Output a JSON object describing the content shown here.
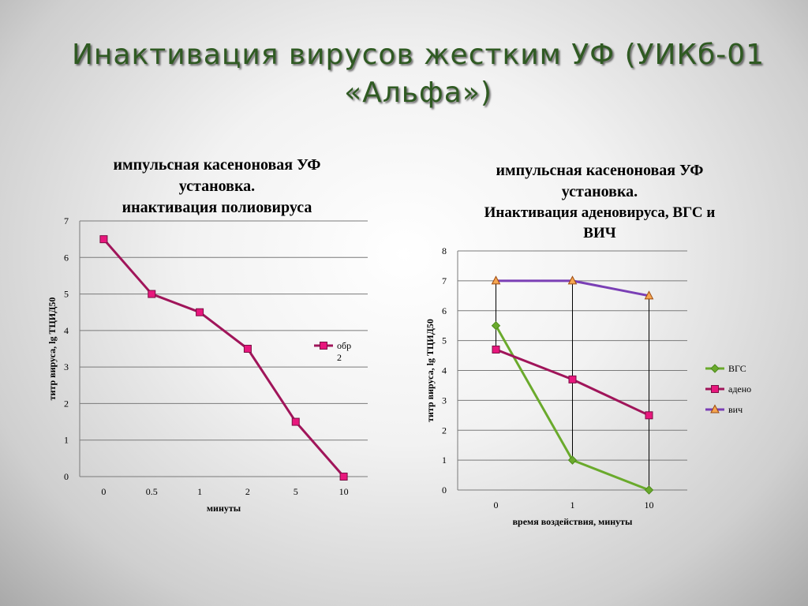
{
  "slide": {
    "title_line1": "Инактивация вирусов жестким УФ (УИКб-01",
    "title_line2": "«Альфа»)"
  },
  "colors": {
    "series_magenta": "#a0155a",
    "marker_magenta": "#e8177d",
    "vgs": "#6aaa2c",
    "vich": "#7a3fb5",
    "vich_marker": "#f5a650"
  },
  "chart_data": [
    {
      "type": "line",
      "title_lines": [
        "импульсная касеноновая УФ",
        "установка.",
        "инактивация полиовируса"
      ],
      "categories": [
        "0",
        "0.5",
        "1",
        "2",
        "5",
        "10"
      ],
      "series": [
        {
          "name": "обр 2",
          "legend_lines": [
            "обр",
            "2"
          ],
          "values": [
            6.5,
            5,
            4.5,
            3.5,
            1.5,
            0
          ]
        }
      ],
      "xlabel": "минуты",
      "ylabel": "титр вируса, lg ТЦИД50",
      "ylim": [
        0,
        7
      ],
      "yticks": [
        "0",
        "1",
        "2",
        "3",
        "4",
        "5",
        "6",
        "7"
      ],
      "grid": true,
      "legend_position": "right"
    },
    {
      "type": "line",
      "title_lines": [
        "импульсная касеноновая УФ",
        "установка.",
        "Инактивация аденовируса, ВГС и",
        "ВИЧ"
      ],
      "categories": [
        "0",
        "1",
        "10"
      ],
      "series": [
        {
          "name": "ВГС",
          "values": [
            5.5,
            1,
            0
          ]
        },
        {
          "name": "адено",
          "values": [
            4.7,
            3.7,
            2.5
          ]
        },
        {
          "name": "вич",
          "values": [
            7,
            7,
            6.5
          ]
        }
      ],
      "xlabel": "время воздействия, минуты",
      "ylabel": "титр вируса, lg ТЦИД50",
      "ylim": [
        0,
        8
      ],
      "yticks": [
        "0",
        "1",
        "2",
        "3",
        "4",
        "5",
        "6",
        "7",
        "8"
      ],
      "grid": true,
      "drop_lines": true,
      "legend_position": "right"
    }
  ]
}
